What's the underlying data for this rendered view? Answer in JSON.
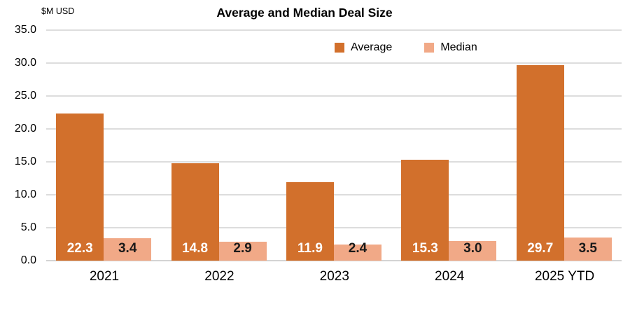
{
  "chart_data": {
    "type": "bar",
    "title": "Average and Median Deal Size",
    "unit_label": "$M USD",
    "categories": [
      "2021",
      "2022",
      "2023",
      "2024",
      "2025 YTD"
    ],
    "series": [
      {
        "name": "Average",
        "color": "#D2702C",
        "label_color": "#FFFFFF",
        "values": [
          22.3,
          14.8,
          11.9,
          15.3,
          29.7
        ]
      },
      {
        "name": "Median",
        "color": "#F1A987",
        "label_color": "#1A1A1A",
        "values": [
          3.4,
          2.9,
          2.4,
          3.0,
          3.5
        ]
      }
    ],
    "ylim": [
      0,
      35
    ],
    "ytick_step": 5,
    "ytick_format_decimals": 1,
    "grid": true,
    "legend_position": "top-center",
    "data_labels": "inside-base"
  },
  "colors": {
    "background": "#FFFFFF",
    "gridline": "#DDDDDD",
    "axis_line": "#D4D4D4",
    "letterbox": "#000000",
    "text": "#000000"
  }
}
